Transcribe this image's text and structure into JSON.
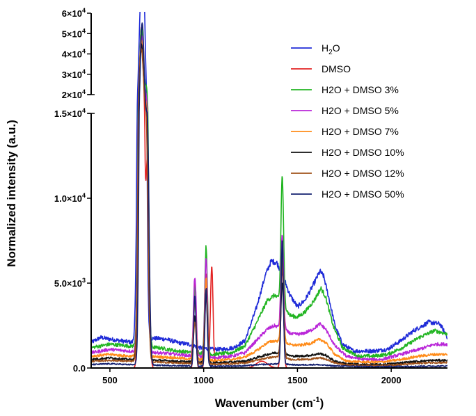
{
  "chart_data": {
    "type": "line",
    "xlabel": "Wavenumber (cm",
    "xlabel_sup": "-1",
    "xlabel_close": ")",
    "ylabel": "Normalized intensity (a.u.)",
    "xlim": [
      400,
      2300
    ],
    "x_ticks": [
      {
        "value": 500,
        "label": "500"
      },
      {
        "value": 1000,
        "label": "1000"
      },
      {
        "value": 1500,
        "label": "1500"
      },
      {
        "value": 2000,
        "label": "2000"
      }
    ],
    "y_axis_broken": true,
    "y_lower_range": [
      0,
      15000
    ],
    "y_upper_range": [
      20000,
      60000
    ],
    "y_ticks_lower": [
      {
        "value": 0,
        "base": "0.0",
        "exp": ""
      },
      {
        "value": 5000,
        "base": "5.0×10",
        "exp": "3"
      },
      {
        "value": 10000,
        "base": "1.0×10",
        "exp": "4"
      },
      {
        "value": 15000,
        "base": "1.5×10",
        "exp": "4"
      }
    ],
    "y_ticks_upper": [
      {
        "value": 20000,
        "base": "2×10",
        "exp": "4"
      },
      {
        "value": 30000,
        "base": "3×10",
        "exp": "4"
      },
      {
        "value": 40000,
        "base": "4×10",
        "exp": "4"
      },
      {
        "value": 50000,
        "base": "5×10",
        "exp": "4"
      },
      {
        "value": 60000,
        "base": "6×10",
        "exp": "4"
      }
    ],
    "legend_position": "top-right",
    "series": [
      {
        "name": "H2O",
        "legend_base": "H",
        "legend_sub": "2",
        "legend_rest": "O",
        "color": "#1f2bd8",
        "noise": 180,
        "baseline": [
          [
            400,
            1500
          ],
          [
            450,
            1800
          ],
          [
            500,
            1700
          ],
          [
            560,
            1600
          ],
          [
            620,
            1500
          ],
          [
            680,
            1700
          ],
          [
            740,
            1750
          ],
          [
            800,
            1700
          ],
          [
            860,
            1500
          ],
          [
            920,
            1400
          ],
          [
            980,
            1200
          ],
          [
            1040,
            1100
          ],
          [
            1100,
            1100
          ],
          [
            1160,
            1200
          ],
          [
            1220,
            1600
          ],
          [
            1280,
            3500
          ],
          [
            1330,
            5500
          ],
          [
            1360,
            6300
          ],
          [
            1390,
            6200
          ],
          [
            1420,
            5500
          ],
          [
            1460,
            4300
          ],
          [
            1500,
            3600
          ],
          [
            1540,
            4000
          ],
          [
            1580,
            4800
          ],
          [
            1620,
            5700
          ],
          [
            1640,
            5400
          ],
          [
            1670,
            4000
          ],
          [
            1700,
            2500
          ],
          [
            1740,
            1400
          ],
          [
            1800,
            1000
          ],
          [
            1900,
            1000
          ],
          [
            1980,
            1100
          ],
          [
            2050,
            1600
          ],
          [
            2120,
            2200
          ],
          [
            2200,
            2700
          ],
          [
            2260,
            2600
          ],
          [
            2300,
            1800
          ]
        ],
        "peaks": [
          [
            665,
            56000,
            12
          ],
          [
            680,
            52000,
            10
          ]
        ]
      },
      {
        "name": "DMSO",
        "legend_base": "DMSO",
        "legend_sub": "",
        "legend_rest": "",
        "color": "#e32222",
        "noise": 0,
        "baseline": [
          [
            400,
            0
          ],
          [
            2300,
            0
          ]
        ],
        "peaks": [
          [
            668,
            53000,
            10
          ],
          [
            700,
            12000,
            9
          ],
          [
            953,
            5300,
            6
          ],
          [
            1013,
            5600,
            6
          ],
          [
            1043,
            6000,
            7
          ],
          [
            1419,
            6200,
            7
          ],
          [
            1310,
            400,
            30
          ],
          [
            2913,
            0,
            5
          ]
        ]
      },
      {
        "name": "H2O + DMSO 3%",
        "legend_base": "H2O + DMSO 3%",
        "legend_sub": "",
        "legend_rest": "",
        "color": "#22b522",
        "noise": 160,
        "baseline": [
          [
            400,
            1200
          ],
          [
            500,
            1400
          ],
          [
            600,
            1300
          ],
          [
            760,
            1200
          ],
          [
            860,
            1000
          ],
          [
            950,
            900
          ],
          [
            1050,
            800
          ],
          [
            1150,
            900
          ],
          [
            1220,
            1300
          ],
          [
            1280,
            2600
          ],
          [
            1340,
            4000
          ],
          [
            1380,
            4300
          ],
          [
            1420,
            3800
          ],
          [
            1460,
            3100
          ],
          [
            1500,
            3000
          ],
          [
            1540,
            3300
          ],
          [
            1590,
            4000
          ],
          [
            1625,
            4700
          ],
          [
            1650,
            4200
          ],
          [
            1690,
            2500
          ],
          [
            1740,
            1200
          ],
          [
            1820,
            700
          ],
          [
            1900,
            700
          ],
          [
            1980,
            800
          ],
          [
            2060,
            1200
          ],
          [
            2150,
            1800
          ],
          [
            2230,
            2200
          ],
          [
            2300,
            2000
          ]
        ],
        "peaks": [
          [
            668,
            51000,
            11
          ],
          [
            695,
            20000,
            9
          ],
          [
            953,
            3800,
            7
          ],
          [
            1013,
            6300,
            7
          ],
          [
            1419,
            7500,
            7
          ]
        ]
      },
      {
        "name": "H2O + DMSO 5%",
        "legend_base": "H2O + DMSO 5%",
        "legend_sub": "",
        "legend_rest": "",
        "color": "#b926d8",
        "noise": 140,
        "baseline": [
          [
            400,
            900
          ],
          [
            500,
            1100
          ],
          [
            600,
            1000
          ],
          [
            760,
            900
          ],
          [
            860,
            800
          ],
          [
            950,
            700
          ],
          [
            1050,
            600
          ],
          [
            1150,
            700
          ],
          [
            1220,
            900
          ],
          [
            1280,
            1600
          ],
          [
            1340,
            2300
          ],
          [
            1380,
            2500
          ],
          [
            1420,
            2300
          ],
          [
            1470,
            2000
          ],
          [
            1520,
            2000
          ],
          [
            1570,
            2200
          ],
          [
            1620,
            2600
          ],
          [
            1650,
            2300
          ],
          [
            1700,
            1300
          ],
          [
            1760,
            700
          ],
          [
            1850,
            500
          ],
          [
            1950,
            500
          ],
          [
            2050,
            800
          ],
          [
            2150,
            1100
          ],
          [
            2230,
            1400
          ],
          [
            2300,
            1400
          ]
        ],
        "peaks": [
          [
            668,
            48000,
            11
          ],
          [
            695,
            16000,
            9
          ],
          [
            953,
            4700,
            7
          ],
          [
            1013,
            5800,
            7
          ],
          [
            1419,
            5600,
            7
          ]
        ]
      },
      {
        "name": "H2O + DMSO 7%",
        "legend_base": "H2O + DMSO 7%",
        "legend_sub": "",
        "legend_rest": "",
        "color": "#ff8c1a",
        "noise": 120,
        "baseline": [
          [
            400,
            700
          ],
          [
            500,
            800
          ],
          [
            600,
            700
          ],
          [
            760,
            650
          ],
          [
            860,
            600
          ],
          [
            950,
            500
          ],
          [
            1050,
            450
          ],
          [
            1150,
            500
          ],
          [
            1220,
            650
          ],
          [
            1280,
            1000
          ],
          [
            1340,
            1500
          ],
          [
            1380,
            1600
          ],
          [
            1420,
            1550
          ],
          [
            1470,
            1350
          ],
          [
            1520,
            1350
          ],
          [
            1570,
            1450
          ],
          [
            1620,
            1700
          ],
          [
            1650,
            1500
          ],
          [
            1700,
            800
          ],
          [
            1760,
            400
          ],
          [
            1850,
            350
          ],
          [
            1950,
            350
          ],
          [
            2050,
            500
          ],
          [
            2150,
            700
          ],
          [
            2230,
            800
          ],
          [
            2300,
            800
          ]
        ],
        "peaks": [
          [
            668,
            46000,
            11
          ],
          [
            695,
            14000,
            9
          ],
          [
            953,
            3400,
            7
          ],
          [
            1013,
            4800,
            7
          ],
          [
            1419,
            5000,
            7
          ]
        ]
      },
      {
        "name": "H2O + DMSO 10%",
        "legend_base": "H2O + DMSO 10%",
        "legend_sub": "",
        "legend_rest": "",
        "color": "#111111",
        "noise": 100,
        "baseline": [
          [
            400,
            500
          ],
          [
            500,
            600
          ],
          [
            600,
            500
          ],
          [
            760,
            450
          ],
          [
            860,
            400
          ],
          [
            950,
            350
          ],
          [
            1050,
            300
          ],
          [
            1150,
            350
          ],
          [
            1220,
            400
          ],
          [
            1280,
            600
          ],
          [
            1340,
            800
          ],
          [
            1380,
            900
          ],
          [
            1420,
            850
          ],
          [
            1470,
            700
          ],
          [
            1520,
            700
          ],
          [
            1570,
            750
          ],
          [
            1620,
            850
          ],
          [
            1650,
            750
          ],
          [
            1700,
            400
          ],
          [
            1760,
            250
          ],
          [
            1850,
            200
          ],
          [
            1950,
            200
          ],
          [
            2050,
            300
          ],
          [
            2150,
            400
          ],
          [
            2230,
            450
          ],
          [
            2300,
            450
          ]
        ],
        "peaks": [
          [
            668,
            44000,
            11
          ],
          [
            695,
            13000,
            9
          ],
          [
            953,
            2700,
            7
          ],
          [
            1013,
            4300,
            7
          ],
          [
            1419,
            4200,
            7
          ]
        ]
      },
      {
        "name": "H2O + DMSO 12%",
        "legend_base": "H2O + DMSO 12%",
        "legend_sub": "",
        "legend_rest": "",
        "color": "#a0521a",
        "noise": 80,
        "baseline": [
          [
            400,
            400
          ],
          [
            500,
            450
          ],
          [
            600,
            400
          ],
          [
            760,
            350
          ],
          [
            860,
            300
          ],
          [
            950,
            250
          ],
          [
            1050,
            220
          ],
          [
            1150,
            250
          ],
          [
            1220,
            300
          ],
          [
            1280,
            450
          ],
          [
            1340,
            600
          ],
          [
            1380,
            650
          ],
          [
            1420,
            620
          ],
          [
            1470,
            500
          ],
          [
            1520,
            500
          ],
          [
            1570,
            520
          ],
          [
            1620,
            600
          ],
          [
            1650,
            520
          ],
          [
            1700,
            300
          ],
          [
            1760,
            180
          ],
          [
            1850,
            150
          ],
          [
            1950,
            150
          ],
          [
            2050,
            200
          ],
          [
            2150,
            280
          ],
          [
            2230,
            320
          ],
          [
            2300,
            320
          ]
        ],
        "peaks": [
          [
            668,
            42000,
            11
          ],
          [
            695,
            12000,
            9
          ],
          [
            953,
            2500,
            7
          ],
          [
            1013,
            4000,
            7
          ],
          [
            1419,
            6000,
            7
          ]
        ]
      },
      {
        "name": "H2O + DMSO 50%",
        "legend_base": "H2O + DMSO 50%",
        "legend_sub": "",
        "legend_rest": "",
        "color": "#13206f",
        "noise": 60,
        "baseline": [
          [
            400,
            200
          ],
          [
            500,
            250
          ],
          [
            600,
            200
          ],
          [
            800,
            150
          ],
          [
            1000,
            100
          ],
          [
            1200,
            120
          ],
          [
            1300,
            200
          ],
          [
            1400,
            250
          ],
          [
            1500,
            180
          ],
          [
            1600,
            200
          ],
          [
            1700,
            120
          ],
          [
            1900,
            80
          ],
          [
            2100,
            100
          ],
          [
            2300,
            120
          ]
        ],
        "peaks": [
          [
            672,
            55000,
            10
          ],
          [
            700,
            13500,
            9
          ],
          [
            953,
            4200,
            6
          ],
          [
            1013,
            4600,
            6
          ],
          [
            1419,
            7300,
            6
          ]
        ]
      }
    ]
  }
}
